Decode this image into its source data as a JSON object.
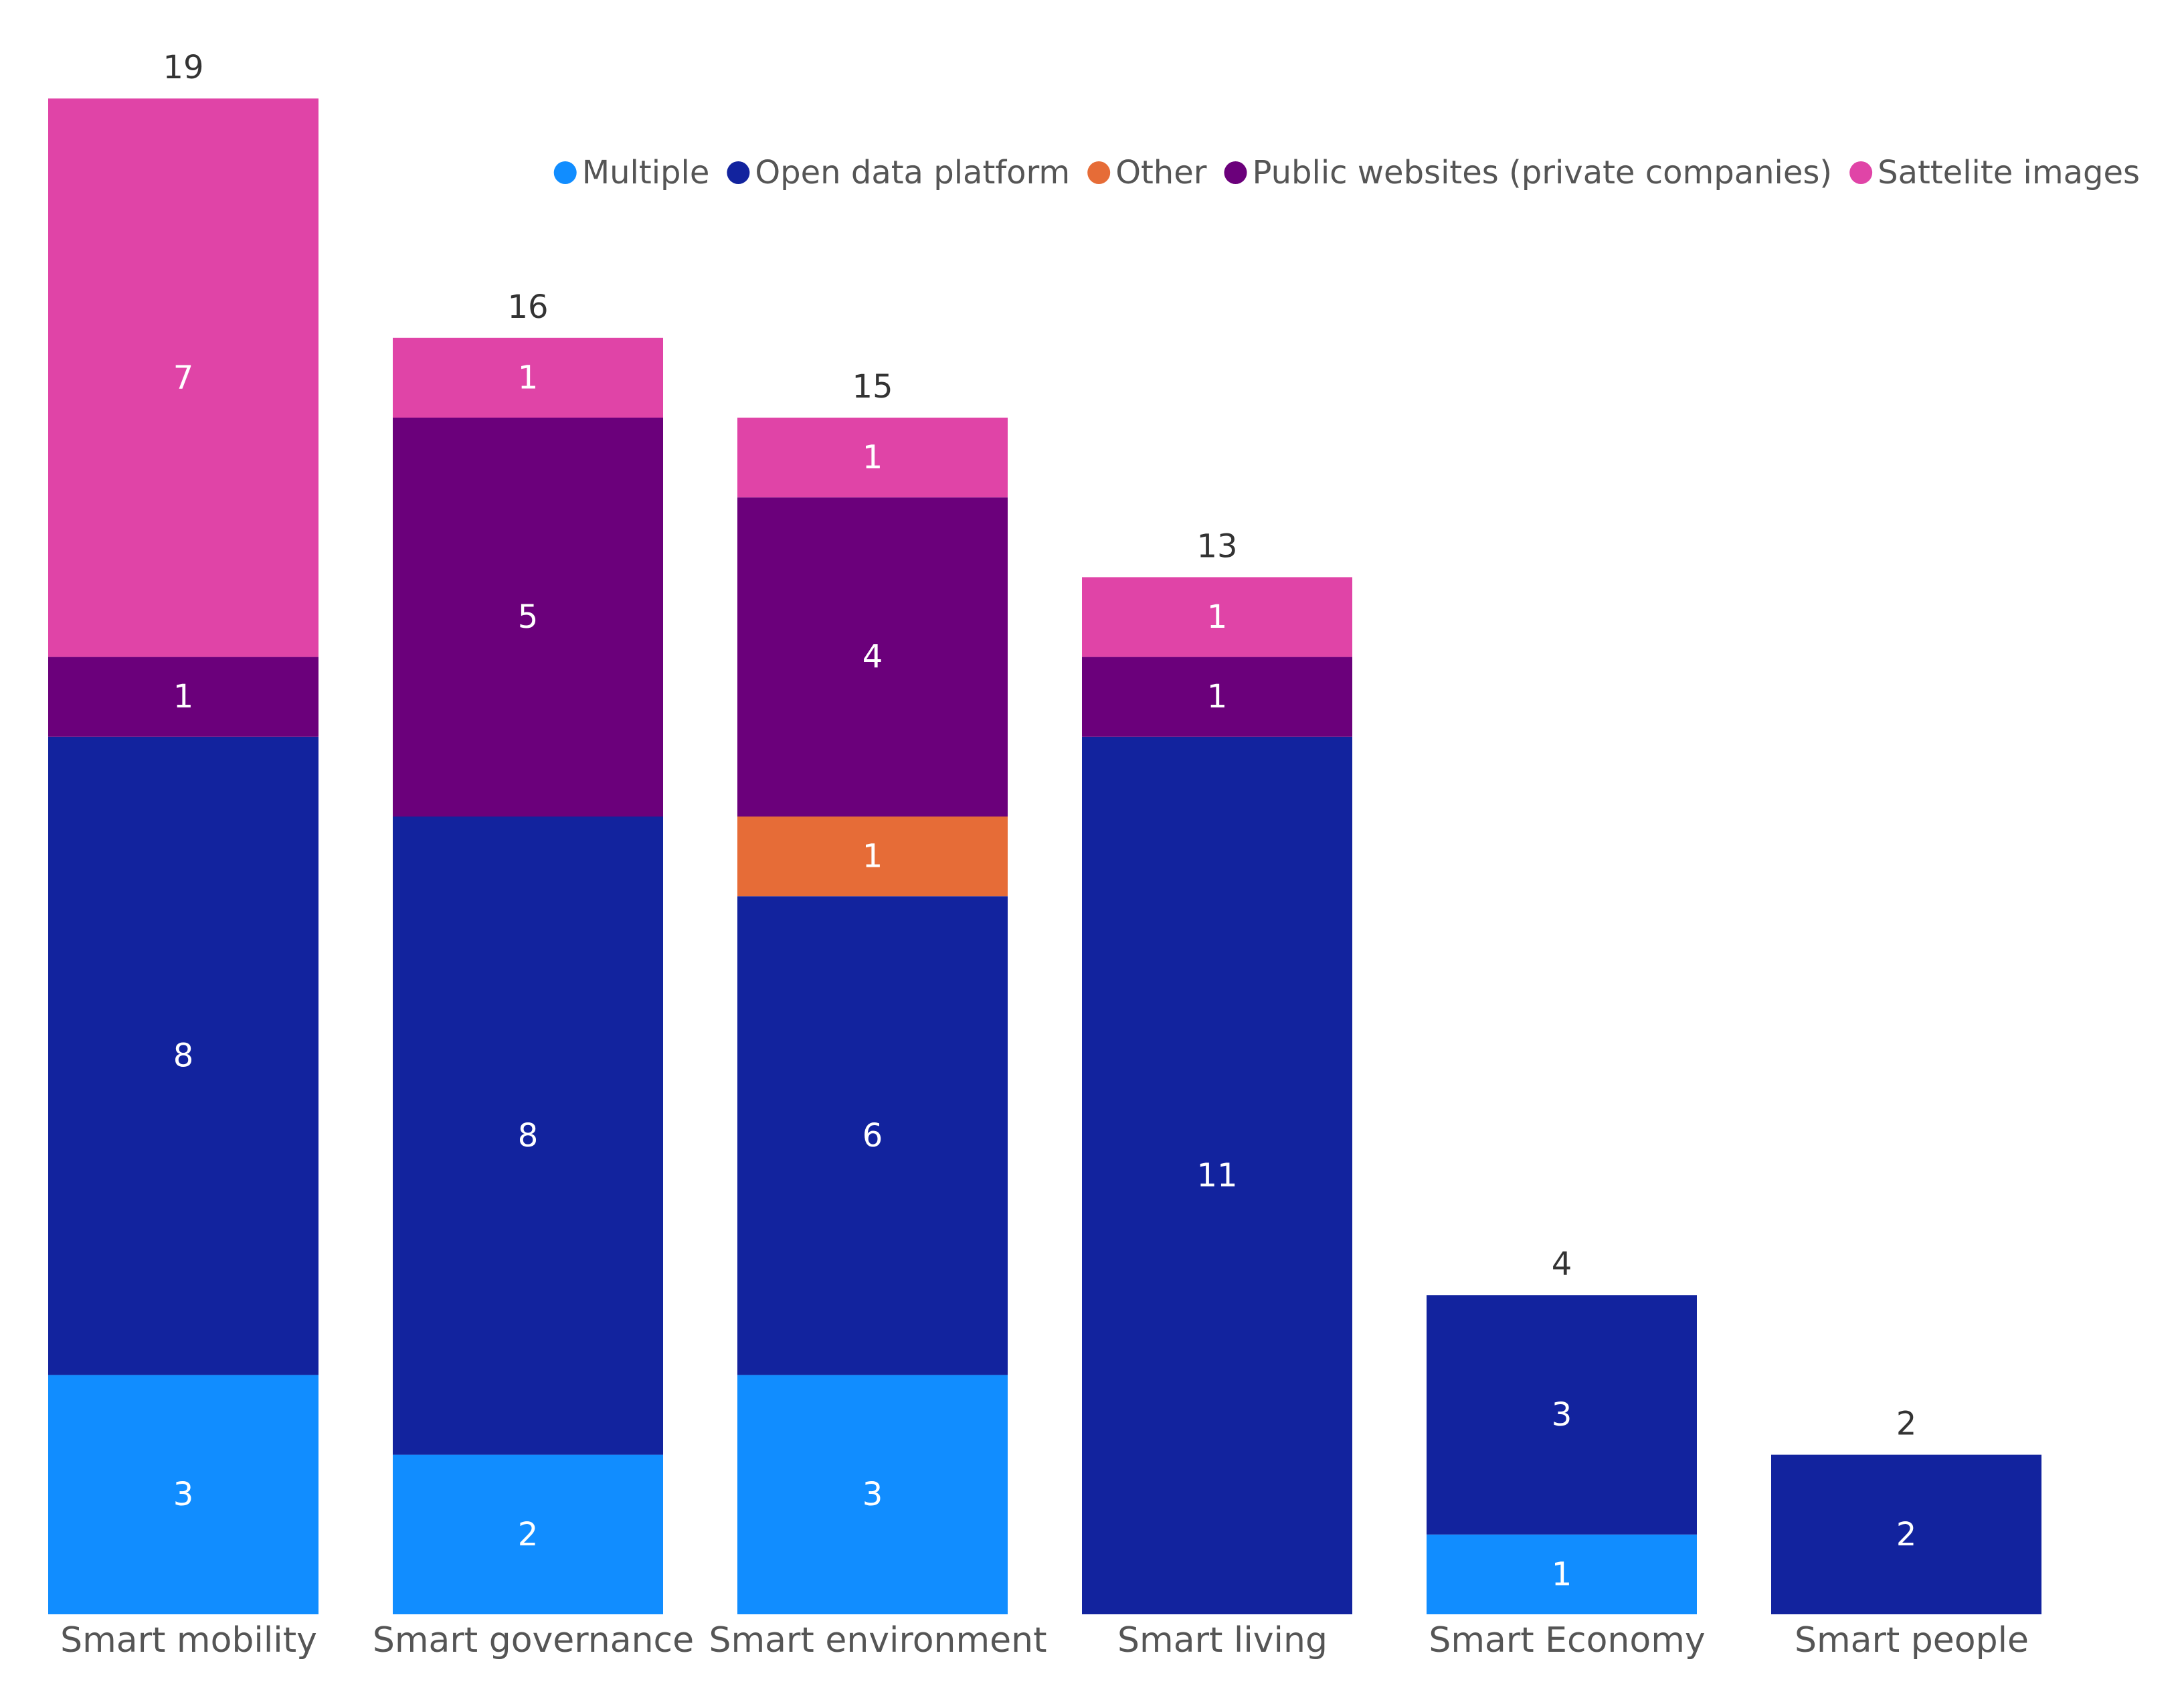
{
  "chart_data": {
    "type": "bar",
    "stacked": true,
    "title": "",
    "xlabel": "",
    "ylabel": "",
    "ylim": [
      0,
      19
    ],
    "grid": false,
    "legend_position": "top-right",
    "categories": [
      "Smart mobility",
      "Smart governance",
      "Smart environment",
      "Smart living",
      "Smart Economy",
      "Smart people"
    ],
    "totals": [
      19,
      16,
      15,
      13,
      4,
      2
    ],
    "series": [
      {
        "name": "Multiple",
        "color": "#118DFF",
        "values": [
          3,
          2,
          3,
          0,
          1,
          0
        ]
      },
      {
        "name": "Open data platform",
        "color": "#12239E",
        "values": [
          8,
          8,
          6,
          11,
          3,
          2
        ]
      },
      {
        "name": "Other",
        "color": "#E66C37",
        "values": [
          0,
          0,
          1,
          0,
          0,
          0
        ]
      },
      {
        "name": "Public websites (private companies)",
        "color": "#6B007B",
        "values": [
          1,
          5,
          4,
          1,
          0,
          0
        ]
      },
      {
        "name": "Sattelite images",
        "color": "#E044A7",
        "values": [
          7,
          1,
          1,
          1,
          0,
          0
        ]
      }
    ]
  }
}
